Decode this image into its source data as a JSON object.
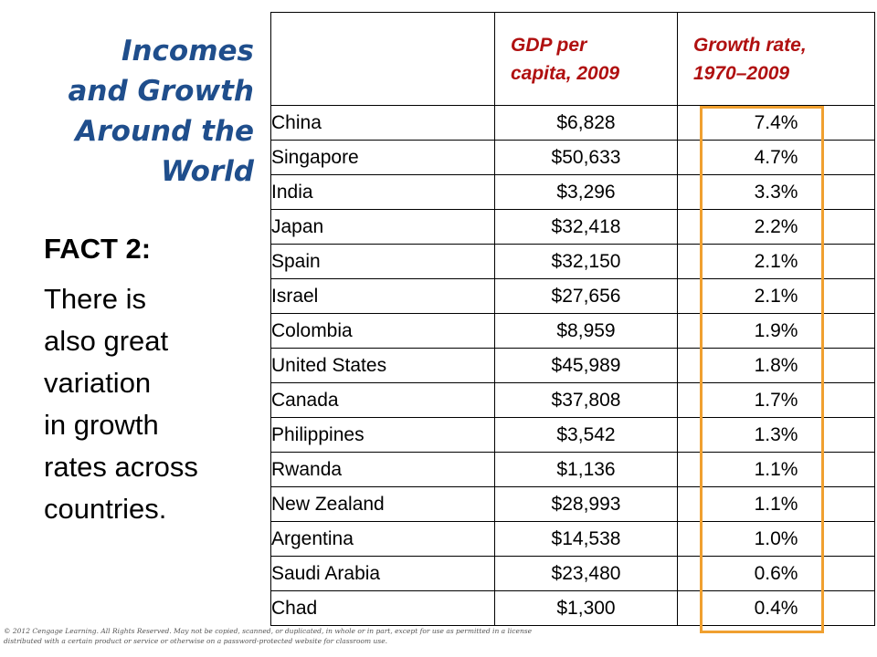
{
  "title": {
    "lines": [
      "Incomes",
      "and Growth",
      "Around the",
      "World"
    ]
  },
  "fact": {
    "label": "FACT 2:",
    "lines": [
      "There is",
      "also great",
      "variation",
      "in growth",
      "rates across",
      "countries."
    ]
  },
  "table": {
    "headers": {
      "country": "",
      "gdp": [
        "GDP per",
        "capita, 2009"
      ],
      "growth": [
        "Growth rate,",
        "1970–2009"
      ]
    },
    "rows": [
      {
        "country": "China",
        "gdp": "$6,828",
        "growth": "7.4%"
      },
      {
        "country": "Singapore",
        "gdp": "$50,633",
        "growth": "4.7%"
      },
      {
        "country": "India",
        "gdp": "$3,296",
        "growth": "3.3%"
      },
      {
        "country": "Japan",
        "gdp": "$32,418",
        "growth": "2.2%"
      },
      {
        "country": "Spain",
        "gdp": "$32,150",
        "growth": "2.1%"
      },
      {
        "country": "Israel",
        "gdp": "$27,656",
        "growth": "2.1%"
      },
      {
        "country": "Colombia",
        "gdp": "$8,959",
        "growth": "1.9%"
      },
      {
        "country": "United States",
        "gdp": "$45,989",
        "growth": "1.8%"
      },
      {
        "country": "Canada",
        "gdp": "$37,808",
        "growth": "1.7%"
      },
      {
        "country": "Philippines",
        "gdp": "$3,542",
        "growth": "1.3%"
      },
      {
        "country": "Rwanda",
        "gdp": "$1,136",
        "growth": "1.1%"
      },
      {
        "country": "New Zealand",
        "gdp": "$28,993",
        "growth": "1.1%"
      },
      {
        "country": "Argentina",
        "gdp": "$14,538",
        "growth": "1.0%"
      },
      {
        "country": "Saudi Arabia",
        "gdp": "$23,480",
        "growth": "0.6%"
      },
      {
        "country": "Chad",
        "gdp": "$1,300",
        "growth": "0.4%"
      }
    ]
  },
  "colors": {
    "title": "#1f4e8c",
    "header": "#b01010",
    "highlight": "#f0a030"
  },
  "copyright": "© 2012 Cengage Learning. All Rights Reserved. May not be copied, scanned, or duplicated, in whole or in part, except for use as permitted in a license distributed with a certain product or service or otherwise on a password-protected website for classroom use."
}
